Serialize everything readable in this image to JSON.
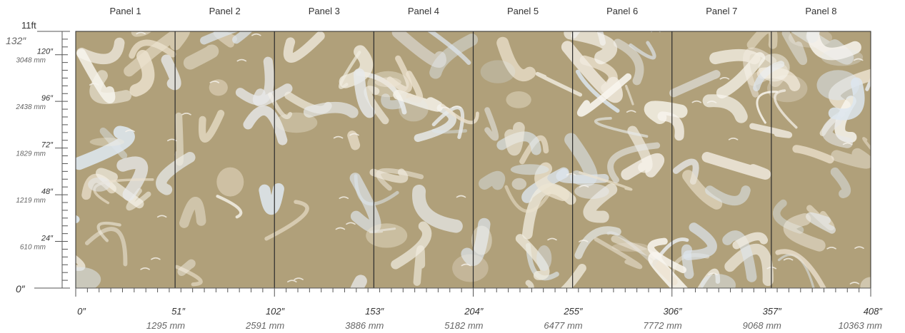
{
  "mural": {
    "background_color": "#b0a07a",
    "stroke_colors": [
      "#f1ece0",
      "#e7e9ea",
      "#dde6ee",
      "#ece2cf",
      "#f8f5ee"
    ],
    "divider_color": "#2b2b2b",
    "panels": [
      {
        "label": "Panel 1"
      },
      {
        "label": "Panel 2"
      },
      {
        "label": "Panel 3"
      },
      {
        "label": "Panel 4"
      },
      {
        "label": "Panel 5"
      },
      {
        "label": "Panel 6"
      },
      {
        "label": "Panel 7"
      },
      {
        "label": "Panel 8"
      }
    ]
  },
  "x_axis": {
    "range_in": [
      0,
      408
    ],
    "ticks": [
      {
        "value": 0,
        "inch": "0″",
        "mm": ""
      },
      {
        "value": 51,
        "inch": "51″",
        "mm": "1295 mm"
      },
      {
        "value": 102,
        "inch": "102″",
        "mm": "2591 mm"
      },
      {
        "value": 153,
        "inch": "153″",
        "mm": "3886 mm"
      },
      {
        "value": 204,
        "inch": "204″",
        "mm": "5182 mm"
      },
      {
        "value": 255,
        "inch": "255″",
        "mm": "6477 mm"
      },
      {
        "value": 306,
        "inch": "306″",
        "mm": "7772 mm"
      },
      {
        "value": 357,
        "inch": "357″",
        "mm": "9068 mm"
      },
      {
        "value": 408,
        "inch": "408″",
        "mm": "10363 mm"
      }
    ]
  },
  "y_axis": {
    "range_in": [
      0,
      132
    ],
    "top_feet": "11ft",
    "top_inch": "132″",
    "zero": "0″",
    "ticks": [
      {
        "value": 120,
        "inch": "120″",
        "mm": "3048 mm"
      },
      {
        "value": 96,
        "inch": "96″",
        "mm": "2438 mm"
      },
      {
        "value": 72,
        "inch": "72″",
        "mm": "1829 mm"
      },
      {
        "value": 48,
        "inch": "48″",
        "mm": "1219 mm"
      },
      {
        "value": 24,
        "inch": "24″",
        "mm": "610 mm"
      }
    ]
  }
}
